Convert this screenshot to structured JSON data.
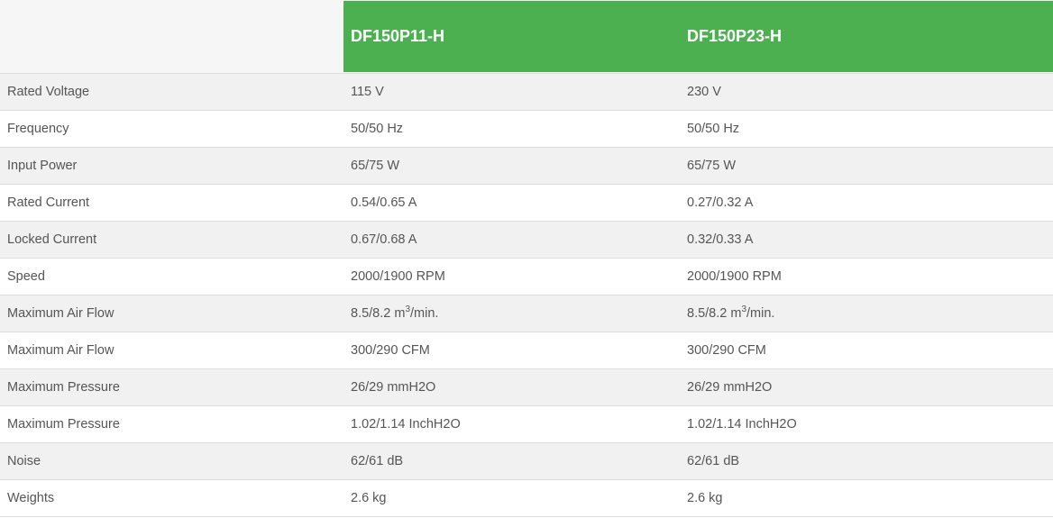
{
  "header": {
    "models": [
      "DF150P11-H",
      "DF150P23-H"
    ],
    "accent_color": "#4cb050"
  },
  "rows": [
    {
      "label": "Rated Voltage",
      "values": [
        {
          "text": "115 V"
        },
        {
          "text": "230 V"
        }
      ]
    },
    {
      "label": "Frequency",
      "values": [
        {
          "text": "50/50 Hz"
        },
        {
          "text": "50/50 Hz"
        }
      ]
    },
    {
      "label": "Input Power",
      "values": [
        {
          "text": "65/75 W"
        },
        {
          "text": "65/75 W"
        }
      ]
    },
    {
      "label": "Rated Current",
      "values": [
        {
          "text": "0.54/0.65 A"
        },
        {
          "text": "0.27/0.32 A"
        }
      ]
    },
    {
      "label": "Locked Current",
      "values": [
        {
          "text": "0.67/0.68 A"
        },
        {
          "text": "0.32/0.33 A"
        }
      ]
    },
    {
      "label": "Speed",
      "values": [
        {
          "text": "2000/1900 RPM"
        },
        {
          "text": "2000/1900 RPM"
        }
      ]
    },
    {
      "label": "Maximum Air Flow",
      "values": [
        {
          "text": "8.5/8.2 m",
          "sup": "3",
          "after": "/min."
        },
        {
          "text": "8.5/8.2 m",
          "sup": "3",
          "after": "/min."
        }
      ]
    },
    {
      "label": "Maximum Air Flow",
      "values": [
        {
          "text": "300/290 CFM"
        },
        {
          "text": "300/290 CFM"
        }
      ]
    },
    {
      "label": "Maximum Pressure",
      "values": [
        {
          "text": "26/29 mmH2O"
        },
        {
          "text": "26/29 mmH2O"
        }
      ]
    },
    {
      "label": "Maximum Pressure",
      "values": [
        {
          "text": "1.02/1.14 InchH2O"
        },
        {
          "text": "1.02/1.14 InchH2O"
        }
      ]
    },
    {
      "label": "Noise",
      "values": [
        {
          "text": "62/61 dB"
        },
        {
          "text": "62/61 dB"
        }
      ]
    },
    {
      "label": "Weights",
      "values": [
        {
          "text": "2.6 kg"
        },
        {
          "text": "2.6 kg"
        }
      ]
    }
  ]
}
